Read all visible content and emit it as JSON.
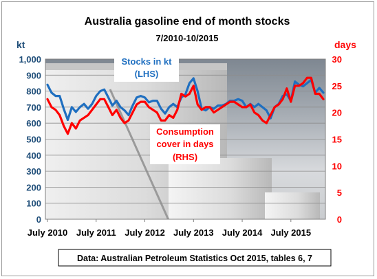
{
  "chart_data": {
    "type": "line",
    "title": "Australia gasoline end of month stocks",
    "subtitle": "7/2010-10/2015",
    "y_left": {
      "unit": "kt",
      "min": 0,
      "max": 1000,
      "ticks": [
        0,
        100,
        200,
        300,
        400,
        500,
        600,
        700,
        800,
        900,
        1000
      ],
      "tick_labels": [
        "0",
        "100",
        "200",
        "300",
        "400",
        "500",
        "600",
        "700",
        "800",
        "900",
        "1,000"
      ]
    },
    "y_right": {
      "unit": "days",
      "min": 0,
      "max": 30,
      "ticks": [
        0,
        5,
        10,
        15,
        20,
        25,
        30
      ],
      "tick_labels": [
        "0",
        "5",
        "10",
        "15",
        "20",
        "25",
        "30"
      ]
    },
    "x_tick_labels": [
      "July 2010",
      "July 2011",
      "July 2012",
      "July 2013",
      "July 2014",
      "July 2015"
    ],
    "grid": true,
    "colors": {
      "stocks": "#1f6fc0",
      "cover": "#ff0000",
      "text": "#000000",
      "right_axis": "#ff0000",
      "left_axis": "#1f4e79"
    },
    "series": [
      {
        "name": "Stocks in kt (LHS)",
        "axis": "left",
        "values": [
          840,
          790,
          770,
          770,
          690,
          620,
          700,
          670,
          700,
          720,
          690,
          720,
          770,
          800,
          810,
          760,
          710,
          740,
          700,
          680,
          650,
          710,
          760,
          770,
          760,
          730,
          740,
          740,
          690,
          660,
          700,
          720,
          700,
          760,
          780,
          850,
          880,
          800,
          690,
          680,
          700,
          690,
          710,
          710,
          720,
          740,
          740,
          750,
          740,
          700,
          720,
          700,
          720,
          700,
          680,
          630,
          700,
          720,
          770,
          780,
          740,
          860,
          840,
          830,
          850,
          870,
          790,
          820,
          790
        ]
      },
      {
        "name": "Consumption cover in days (RHS)",
        "axis": "right",
        "values": [
          22.5,
          21.0,
          20.5,
          19.5,
          17.5,
          16.0,
          18.0,
          17.0,
          18.5,
          19.0,
          19.5,
          20.5,
          21.5,
          22.5,
          22.5,
          21.0,
          19.5,
          20.5,
          19.0,
          18.0,
          18.5,
          20.0,
          21.5,
          22.0,
          22.0,
          21.0,
          20.5,
          20.0,
          18.5,
          18.5,
          19.5,
          19.0,
          20.5,
          23.5,
          23.0,
          23.5,
          25.0,
          21.5,
          20.5,
          21.0,
          21.0,
          20.0,
          20.5,
          21.0,
          21.5,
          22.0,
          22.0,
          21.5,
          21.0,
          21.0,
          21.5,
          20.0,
          19.5,
          18.5,
          18.0,
          19.5,
          21.0,
          21.5,
          22.5,
          24.5,
          22.0,
          25.0,
          25.0,
          25.5,
          26.5,
          26.5,
          23.5,
          23.5,
          22.5
        ]
      }
    ],
    "labels": {
      "stocks_line1": "Stocks in kt",
      "stocks_line2": "(LHS)",
      "cover_line1": "Consumption",
      "cover_line2": "cover in days",
      "cover_line3": "(RHS)"
    },
    "source_note": "Data: Australian Petroleum Statistics Oct 2015, tables 6, 7"
  }
}
